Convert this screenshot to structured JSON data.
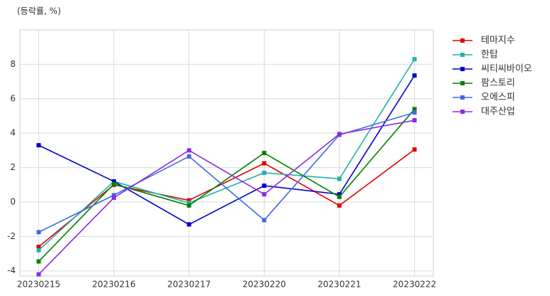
{
  "chart_data": {
    "type": "line",
    "y_label": "(등락률, %)",
    "categories": [
      "20230215",
      "20230216",
      "20230217",
      "20230220",
      "20230221",
      "20230222"
    ],
    "series": [
      {
        "name": "테마지수",
        "color": "#e00000",
        "values": [
          -2.6,
          1.0,
          0.1,
          2.25,
          -0.2,
          3.05
        ]
      },
      {
        "name": "한탑",
        "color": "#20b2aa",
        "values": [
          -2.8,
          1.2,
          -0.05,
          1.7,
          1.35,
          8.3
        ]
      },
      {
        "name": "씨티씨바이오",
        "color": "#0000cd",
        "values": [
          3.3,
          1.2,
          -1.3,
          0.95,
          0.45,
          7.35
        ]
      },
      {
        "name": "팜스토리",
        "color": "#008000",
        "values": [
          -3.45,
          1.05,
          -0.2,
          2.85,
          0.3,
          5.4
        ]
      },
      {
        "name": "오에스피",
        "color": "#4169e1",
        "values": [
          -1.75,
          0.4,
          2.65,
          -1.05,
          3.9,
          5.2
        ]
      },
      {
        "name": "대주산업",
        "color": "#8a2be2",
        "values": [
          -4.2,
          0.25,
          3.0,
          0.45,
          3.95,
          4.75
        ]
      }
    ],
    "ylim": [
      -4.3,
      10
    ],
    "yticks": [
      -4,
      -2,
      0,
      2,
      4,
      6,
      8
    ],
    "grid": true,
    "legend": "outside-right"
  }
}
